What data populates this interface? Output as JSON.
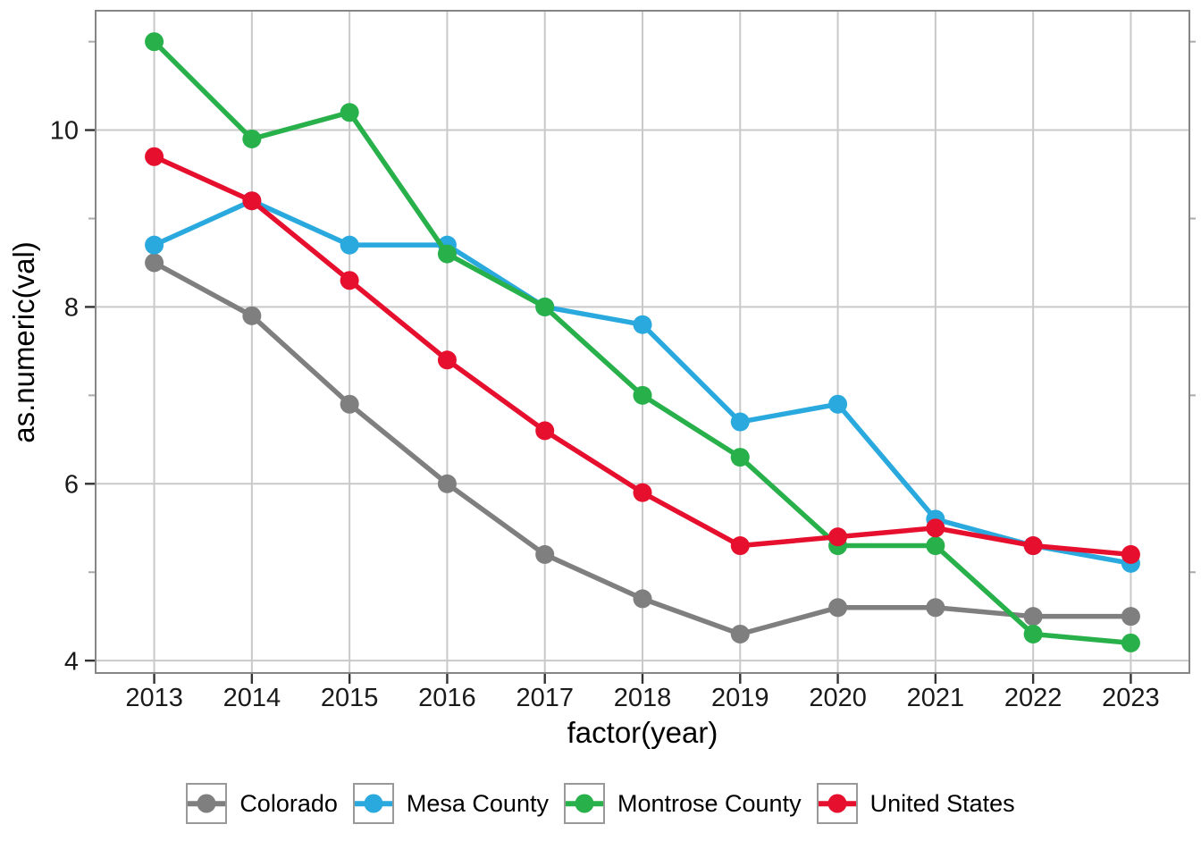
{
  "chart_data": {
    "type": "line",
    "title": "",
    "xlabel": "factor(year)",
    "ylabel": "as.numeric(val)",
    "x_categories": [
      "2013",
      "2014",
      "2015",
      "2016",
      "2017",
      "2018",
      "2019",
      "2020",
      "2021",
      "2022",
      "2023"
    ],
    "y_major_ticks": [
      4,
      6,
      8,
      10
    ],
    "y_minor_ticks": [
      5,
      7,
      9,
      11
    ],
    "ylim": [
      3.86,
      11.35
    ],
    "grid": "major-only",
    "legend_position": "bottom",
    "series": [
      {
        "name": "Colorado",
        "color": "#7f7f7f",
        "values": [
          8.5,
          7.9,
          6.9,
          6.0,
          5.2,
          4.7,
          4.3,
          4.6,
          4.6,
          4.5,
          4.5
        ]
      },
      {
        "name": "Mesa County",
        "color": "#29a9dd",
        "values": [
          8.7,
          9.2,
          8.7,
          8.7,
          8.0,
          7.8,
          6.7,
          6.9,
          5.6,
          5.3,
          5.1
        ]
      },
      {
        "name": "Montrose County",
        "color": "#28b04b",
        "values": [
          11.0,
          9.9,
          10.2,
          8.6,
          8.0,
          7.0,
          6.3,
          5.3,
          5.3,
          4.3,
          4.2
        ]
      },
      {
        "name": "United States",
        "color": "#e6102e",
        "values": [
          9.7,
          9.2,
          8.3,
          7.4,
          6.6,
          5.9,
          5.3,
          5.4,
          5.5,
          5.3,
          5.2
        ]
      }
    ],
    "style_colors": {
      "gridline": "#c9c9c9",
      "panel_border": "#858585",
      "major_tick": "#333333",
      "minor_tick": "#ababab",
      "tick_label": "#1a1a1a"
    }
  }
}
